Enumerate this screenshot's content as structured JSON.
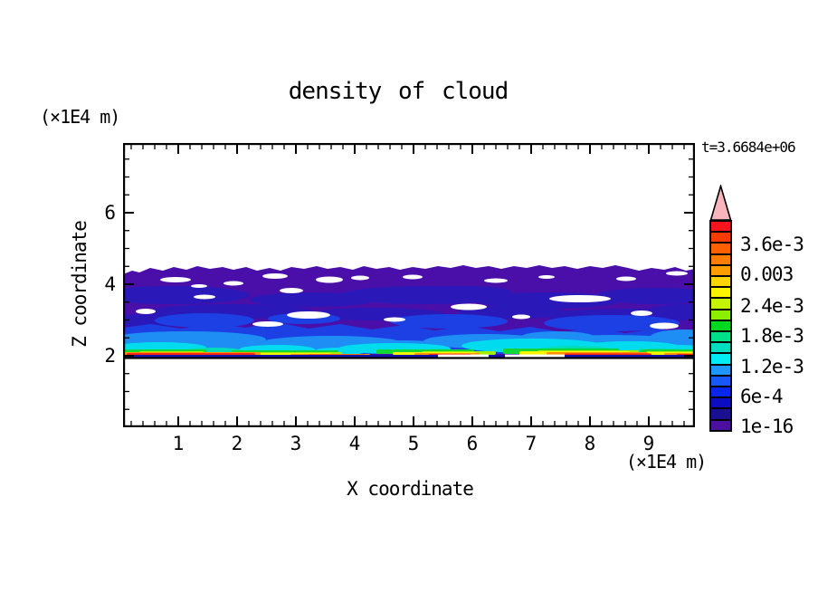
{
  "title": "density of cloud",
  "time_label": "t=3.6684e+06",
  "axis_x": {
    "label": "X coordinate",
    "unit": "(×1E4 m)",
    "ticks": [
      "1",
      "2",
      "3",
      "4",
      "5",
      "6",
      "7",
      "8",
      "9"
    ]
  },
  "axis_z": {
    "label": "Z coordinate",
    "unit": "(×1E4 m)",
    "ticks": [
      "2",
      "4",
      "6"
    ]
  },
  "colorbar": {
    "labels": [
      "3.6e-3",
      "0.003",
      "2.4e-3",
      "1.8e-3",
      "1.2e-3",
      "6e-4",
      "1e-16"
    ],
    "arrow_color": "#f9b4bc",
    "colors": [
      "#f8141c",
      "#fb3c00",
      "#fd6000",
      "#fe7c00",
      "#ff9c00",
      "#ffd400",
      "#fcf400",
      "#c4f400",
      "#8cee00",
      "#00d820",
      "#00e088",
      "#00dcc0",
      "#00ecf4",
      "#1e96fc",
      "#1658f8",
      "#0726ec",
      "#0c0cc0",
      "#181090",
      "#4c10a0"
    ]
  },
  "chart_data": {
    "type": "heatmap",
    "title": "density of cloud",
    "xlabel": "X coordinate (×1E4 m)",
    "ylabel": "Z coordinate (×1E4 m)",
    "x_range": [
      0,
      9.8
    ],
    "z_range": [
      0,
      8
    ],
    "x_major_ticks": [
      1,
      2,
      3,
      4,
      5,
      6,
      7,
      8,
      9
    ],
    "x_minor_step": 0.2,
    "z_major_ticks": [
      2,
      4,
      6
    ],
    "z_minor_step": 0.5,
    "grid": false,
    "legend_position": "right colorbar with top arrow",
    "time_annotation": "t=3.6684e+06",
    "colorbar_tick_labels": [
      "3.6e-3",
      "0.003",
      "2.4e-3",
      "1.8e-3",
      "1.2e-3",
      "6e-4",
      "1e-16"
    ],
    "field_summary": {
      "description": "Horizontal stratiform cloud layer spanning the full x range, between z≈2.0 and z≈4.4 (×1E4 m); density increases downward toward the sharp cloud base at z≈2.0.",
      "cloud_top_z": 4.4,
      "cloud_base_z": 2.0,
      "layers": [
        {
          "z_from": 3.2,
          "z_to": 4.4,
          "value_level": "lowest contour (~1e-16)",
          "color": "#4a0fa8"
        },
        {
          "z_from": 2.9,
          "z_to": 3.4,
          "value_level": "low (~2e-4)",
          "color": "#2b18b8"
        },
        {
          "z_from": 2.4,
          "z_to": 2.9,
          "value_level": "~6e-4",
          "color": "#1c40e4"
        },
        {
          "z_from": 2.2,
          "z_to": 2.5,
          "value_level": "~1.2e-3",
          "color": "#1e8ef5"
        },
        {
          "z_from": 2.1,
          "z_to": 2.3,
          "value_level": "1.8e-3 to 3e-3 (cyan/green/yellow streak)",
          "color": "#00dcee"
        },
        {
          "z_from": 2.0,
          "z_to": 2.15,
          "value_level": "≥3.6e-3 maxima (red streak, strongest near x≈1–2.5 and x≈7–9.5)",
          "color": "#fa2810"
        }
      ]
    }
  }
}
